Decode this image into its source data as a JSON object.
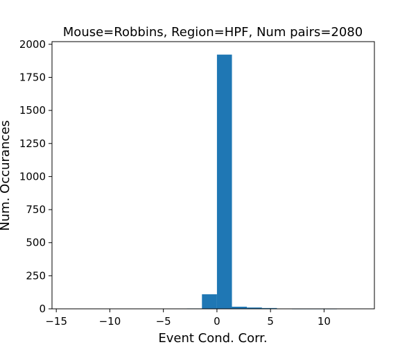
{
  "chart_data": {
    "type": "bar",
    "title": "Mouse=Robbins, Region=HPF, Num pairs=2080",
    "xlabel": "Event Cond. Corr.",
    "ylabel": "Num. Occurances",
    "xlim": [
      -15.4,
      14.7
    ],
    "ylim": [
      0,
      2020
    ],
    "xticks": [
      -15,
      -10,
      -5,
      0,
      5,
      10
    ],
    "xtick_labels": [
      "−15",
      "−10",
      "−5",
      "0",
      "5",
      "10"
    ],
    "yticks": [
      0,
      250,
      500,
      750,
      1000,
      1250,
      1500,
      1750,
      2000
    ],
    "ytick_labels": [
      "0",
      "250",
      "500",
      "750",
      "1000",
      "1250",
      "1500",
      "1750",
      "2000"
    ],
    "grid": false,
    "bin_width": 1.4,
    "bins": [
      {
        "left": -14.0,
        "count": 0
      },
      {
        "left": -12.6,
        "count": 0
      },
      {
        "left": -11.2,
        "count": 0
      },
      {
        "left": -9.8,
        "count": 0
      },
      {
        "left": -8.4,
        "count": 0
      },
      {
        "left": -7.0,
        "count": 0
      },
      {
        "left": -5.6,
        "count": 0
      },
      {
        "left": -4.2,
        "count": 0
      },
      {
        "left": -2.8,
        "count": 3
      },
      {
        "left": -1.4,
        "count": 110
      },
      {
        "left": 0.0,
        "count": 1922
      },
      {
        "left": 1.4,
        "count": 16
      },
      {
        "left": 2.8,
        "count": 10
      },
      {
        "left": 4.2,
        "count": 6
      },
      {
        "left": 5.6,
        "count": 2
      },
      {
        "left": 7.0,
        "count": 1
      },
      {
        "left": 8.4,
        "count": 1
      },
      {
        "left": 9.8,
        "count": 1
      },
      {
        "left": 11.2,
        "count": 0
      },
      {
        "left": 12.6,
        "count": 0
      }
    ],
    "bar_color": "#1f77b4"
  }
}
